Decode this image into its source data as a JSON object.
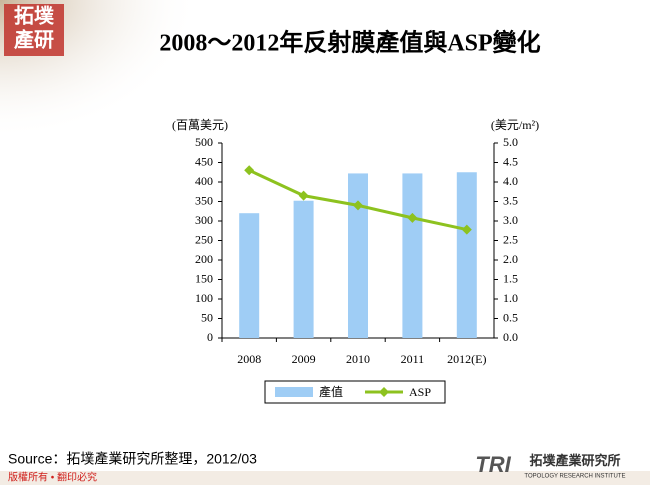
{
  "logo": {
    "lines": [
      "拓墣",
      "產研"
    ]
  },
  "chart_data": {
    "type": "bar",
    "title": "2008～2012年反射膜產值與ASP變化",
    "y_label": "(百萬美元)",
    "y2_label": "(美元/m²)",
    "categories": [
      "2008",
      "2009",
      "2010",
      "2011",
      "2012(E)"
    ],
    "series": [
      {
        "name": "產值",
        "type": "bar",
        "color": "#9fcdf5",
        "values": [
          320,
          352,
          422,
          422,
          425
        ]
      },
      {
        "name": "ASP",
        "type": "line",
        "axis": "y2",
        "color": "#8dc21f",
        "values": [
          4.3,
          3.65,
          3.4,
          3.08,
          2.78
        ]
      }
    ],
    "ylim": [
      0,
      500
    ],
    "yticks": [
      0,
      50,
      100,
      150,
      200,
      250,
      300,
      350,
      400,
      450,
      500
    ],
    "y2lim": [
      0,
      5
    ],
    "y2ticks": [
      {
        "value": 0,
        "label": "0.0"
      },
      0.5,
      {
        "value": 1,
        "label": "1.0"
      },
      1.5,
      {
        "value": 2,
        "label": "2.0"
      },
      2.5,
      {
        "value": 3,
        "label": "3.0"
      },
      3.5,
      {
        "value": 4,
        "label": "4.0"
      },
      4.5,
      {
        "value": 5,
        "label": "5.0"
      }
    ],
    "legend": "bottom"
  },
  "source": "Source：拓墣產業研究所整理，2012/03",
  "footer": {
    "copyright": "版權所有 • 翻印必究",
    "brand": "TRI",
    "org": "拓墣產業研究所",
    "org_en": "TOPOLOGY RESEARCH INSTITUTE"
  }
}
